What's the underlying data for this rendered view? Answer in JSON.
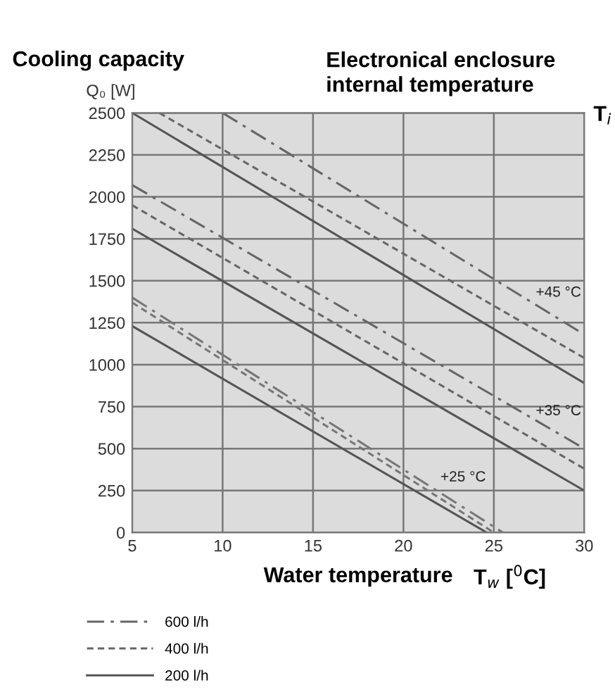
{
  "chart_data": {
    "type": "line",
    "title": "Cooling capacity",
    "ylabel": "Q₀ [W]",
    "xlabel": "Water temperature",
    "annotations": [
      "Electronical enclosure\ninternal temperature",
      "T$_{i}$",
      "T$_{w}$ [$^{0}$C]",
      "+45 °C",
      "+35 °C",
      "+25 °C"
    ],
    "xlim": [
      5,
      30
    ],
    "ylim": [
      0,
      2500
    ],
    "xticks": [
      5,
      10,
      15,
      20,
      25,
      30
    ],
    "yticks": [
      0,
      250,
      500,
      750,
      1000,
      1250,
      1500,
      1750,
      2000,
      2250,
      2500
    ],
    "grid": true,
    "legend": "bottom left",
    "marker": "none",
    "series": [
      {
        "name": "600 l/h",
        "color": "#666666",
        "line_style": "dashdot",
        "x": [
          10,
          30
        ],
        "values": [
          2500,
          1180
        ]
      },
      {
        "name": "400 l/h",
        "color": "#666666",
        "line_style": "dashed",
        "x": [
          6.5,
          30
        ],
        "values": [
          2500,
          1040
        ]
      },
      {
        "name": "200 l/h",
        "color": "#555555",
        "line_style": "solid",
        "x": [
          5,
          30
        ],
        "values": [
          2500,
          890
        ]
      },
      {
        "color": "#666666",
        "line_style": "dashdot",
        "x": [
          5,
          30
        ],
        "values": [
          2070,
          500
        ]
      },
      {
        "color": "#666666",
        "line_style": "dashed",
        "x": [
          5,
          30
        ],
        "values": [
          1950,
          380
        ]
      },
      {
        "color": "#555555",
        "line_style": "solid",
        "x": [
          5,
          30
        ],
        "values": [
          1810,
          250
        ]
      },
      {
        "color": "#777777",
        "line_style": "dashdot",
        "x": [
          5,
          25.5
        ],
        "values": [
          1400,
          0
        ]
      },
      {
        "color": "#777777",
        "line_style": "dashed",
        "x": [
          5,
          25
        ],
        "values": [
          1370,
          0
        ]
      },
      {
        "color": "#555555",
        "line_style": "solid",
        "x": [
          5,
          24.6
        ],
        "values": [
          1230,
          0
        ]
      }
    ]
  }
}
